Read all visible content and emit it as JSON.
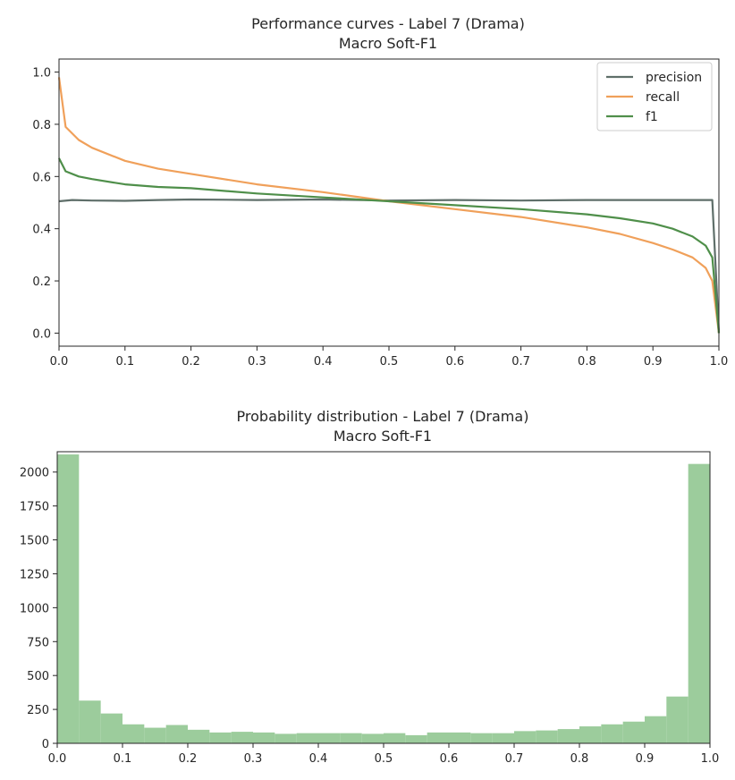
{
  "chart_data": [
    {
      "type": "line",
      "title": "Performance curves - Label 7 (Drama)",
      "subtitle": "Macro Soft-F1",
      "xlabel": "",
      "ylabel": "",
      "xlim": [
        0.0,
        1.0
      ],
      "ylim": [
        -0.05,
        1.05
      ],
      "xticks": [
        "0.0",
        "0.1",
        "0.2",
        "0.3",
        "0.4",
        "0.5",
        "0.6",
        "0.7",
        "0.8",
        "0.9",
        "1.0"
      ],
      "yticks": [
        "0.0",
        "0.2",
        "0.4",
        "0.6",
        "0.8",
        "1.0"
      ],
      "grid": false,
      "legend_position": "top-right",
      "series": [
        {
          "name": "precision",
          "color": "#5f6f6a",
          "x": [
            0.0,
            0.02,
            0.05,
            0.1,
            0.15,
            0.2,
            0.3,
            0.4,
            0.5,
            0.6,
            0.7,
            0.8,
            0.9,
            0.95,
            0.99,
            1.0
          ],
          "y": [
            0.505,
            0.51,
            0.508,
            0.507,
            0.51,
            0.512,
            0.51,
            0.512,
            0.508,
            0.51,
            0.508,
            0.51,
            0.51,
            0.51,
            0.51,
            0.0
          ]
        },
        {
          "name": "recall",
          "color": "#f0a05a",
          "x": [
            0.0,
            0.01,
            0.03,
            0.05,
            0.1,
            0.15,
            0.2,
            0.3,
            0.4,
            0.5,
            0.6,
            0.7,
            0.8,
            0.85,
            0.9,
            0.93,
            0.96,
            0.98,
            0.99,
            1.0
          ],
          "y": [
            0.98,
            0.79,
            0.74,
            0.71,
            0.66,
            0.63,
            0.61,
            0.57,
            0.54,
            0.505,
            0.475,
            0.445,
            0.405,
            0.38,
            0.345,
            0.32,
            0.29,
            0.25,
            0.2,
            0.0
          ],
          "ylim": null
        },
        {
          "name": "f1",
          "color": "#4f8f4a",
          "x": [
            0.0,
            0.01,
            0.03,
            0.05,
            0.1,
            0.15,
            0.2,
            0.3,
            0.4,
            0.5,
            0.6,
            0.7,
            0.8,
            0.85,
            0.9,
            0.93,
            0.96,
            0.98,
            0.99,
            1.0
          ],
          "y": [
            0.67,
            0.62,
            0.6,
            0.59,
            0.57,
            0.56,
            0.555,
            0.535,
            0.52,
            0.505,
            0.49,
            0.475,
            0.455,
            0.44,
            0.42,
            0.4,
            0.37,
            0.335,
            0.29,
            0.0
          ]
        }
      ]
    },
    {
      "type": "bar",
      "title": "Probability distribution - Label 7 (Drama)",
      "subtitle": "Macro Soft-F1",
      "xlabel": "",
      "ylabel": "",
      "xlim": [
        0.0,
        1.0
      ],
      "ylim": [
        0,
        2150
      ],
      "xticks": [
        "0.0",
        "0.1",
        "0.2",
        "0.3",
        "0.4",
        "0.5",
        "0.6",
        "0.7",
        "0.8",
        "0.9",
        "1.0"
      ],
      "yticks": [
        "0",
        "250",
        "500",
        "750",
        "1000",
        "1250",
        "1500",
        "1750",
        "2000"
      ],
      "bin_width": 0.0333,
      "color": "#9ccc9c",
      "values": [
        2130,
        315,
        220,
        140,
        115,
        135,
        100,
        80,
        85,
        80,
        70,
        75,
        75,
        75,
        70,
        75,
        60,
        80,
        80,
        75,
        75,
        90,
        95,
        105,
        125,
        140,
        160,
        200,
        345,
        2060
      ]
    }
  ]
}
